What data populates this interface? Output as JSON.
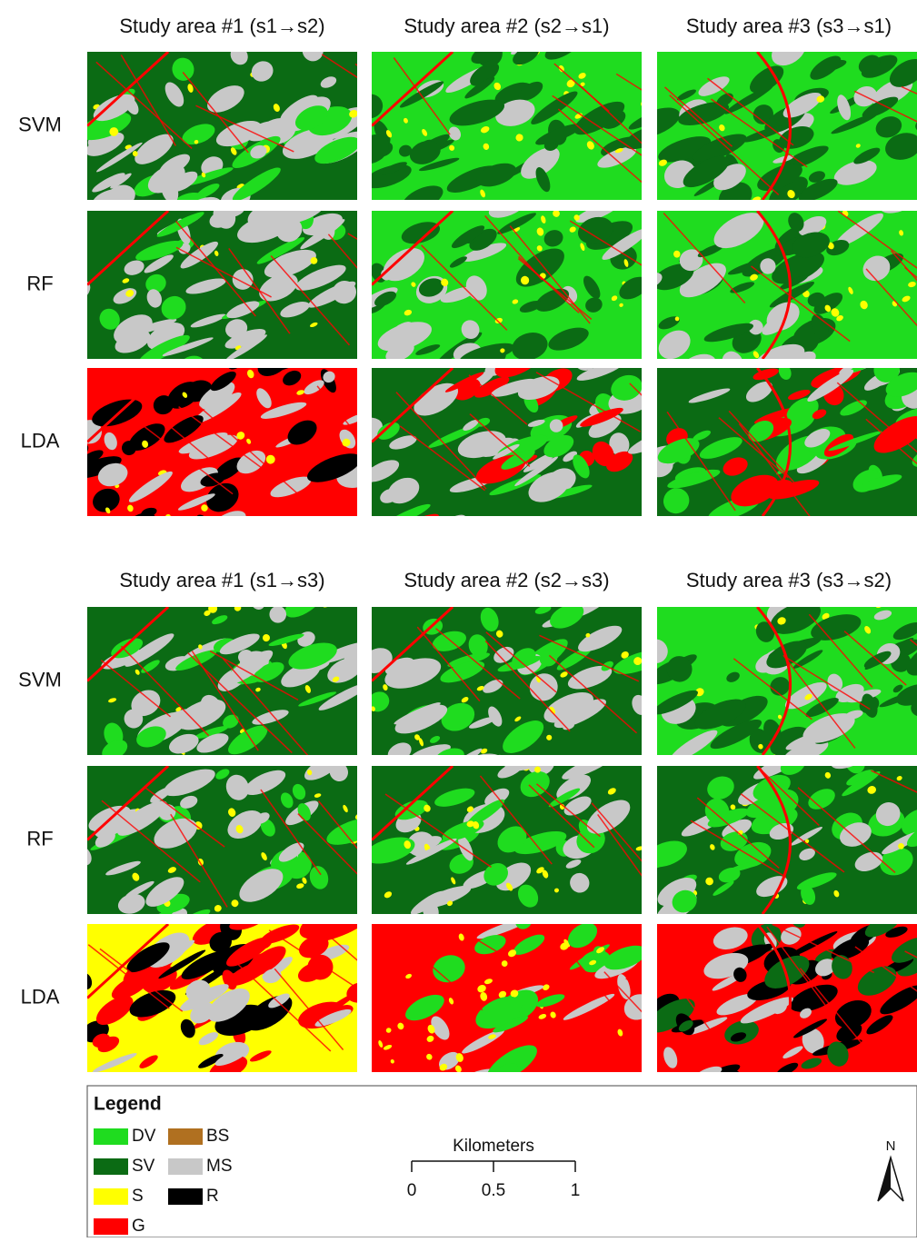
{
  "panels": [
    {
      "columns": [
        "Study area #1 (s1→s2)",
        "Study area #2 (s2→s1)",
        "Study area #3 (s3→s1)"
      ],
      "rows": [
        "SVM",
        "RF",
        "LDA"
      ]
    },
    {
      "columns": [
        "Study area #1 (s1→s3)",
        "Study area #2 (s2→s3)",
        "Study area #3 (s3→s2)"
      ],
      "rows": [
        "SVM",
        "RF",
        "LDA"
      ]
    }
  ],
  "legend": {
    "title": "Legend",
    "items": [
      {
        "label": "DV",
        "color": "#1fdc1f"
      },
      {
        "label": "SV",
        "color": "#0b6b14"
      },
      {
        "label": "S",
        "color": "#ffff00"
      },
      {
        "label": "G",
        "color": "#ff0000"
      },
      {
        "label": "BS",
        "color": "#b07020"
      },
      {
        "label": "MS",
        "color": "#c8c8c8"
      },
      {
        "label": "R",
        "color": "#000000"
      }
    ]
  },
  "scale_bar": {
    "title": "Kilometers",
    "ticks": [
      0,
      0.5,
      1
    ]
  },
  "north_arrow": "N"
}
